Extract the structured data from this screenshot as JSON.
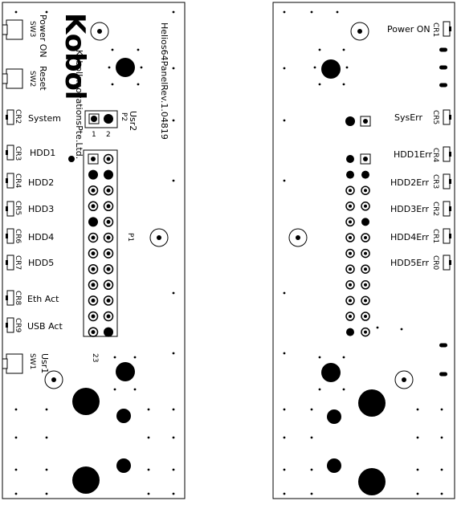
{
  "front": {
    "brand_logo": "Kobol",
    "brand_company": "KobolInnovationsPte.Ltd.",
    "board_rev": "Helios64PanelRev.1.04819",
    "switches": [
      {
        "ref": "SW3",
        "label": "Power ON"
      },
      {
        "ref": "SW2",
        "label": "Reset"
      },
      {
        "ref": "SW1",
        "label": "Usr1"
      }
    ],
    "leds": [
      {
        "ref": "CR2",
        "label": "System"
      },
      {
        "ref": "CR3",
        "label": "HDD1"
      },
      {
        "ref": "CR4",
        "label": "HDD2"
      },
      {
        "ref": "CR5",
        "label": "HDD3"
      },
      {
        "ref": "CR6",
        "label": "HDD4"
      },
      {
        "ref": "CR7",
        "label": "HDD5"
      },
      {
        "ref": "CR8",
        "label": "Eth Act"
      },
      {
        "ref": "CR9",
        "label": "USB Act"
      }
    ],
    "header_p2": {
      "ref": "P2",
      "name": "Usr2",
      "pin1": "1",
      "pin2": "2"
    },
    "header_p1": {
      "ref": "P1",
      "pin_last": "23"
    }
  },
  "back": {
    "leds": [
      {
        "ref": "CR1",
        "label": "Power ON"
      },
      {
        "ref": "CR5",
        "label": "SysErr"
      },
      {
        "ref": "CR4",
        "label": "HDD1Err"
      },
      {
        "ref": "CR3",
        "label": "HDD2Err"
      },
      {
        "ref": "CR2",
        "label": "HDD3Err"
      },
      {
        "ref": "CR1",
        "label": "HDD4Err"
      },
      {
        "ref": "CR0",
        "label": "HDD5Err"
      }
    ]
  }
}
